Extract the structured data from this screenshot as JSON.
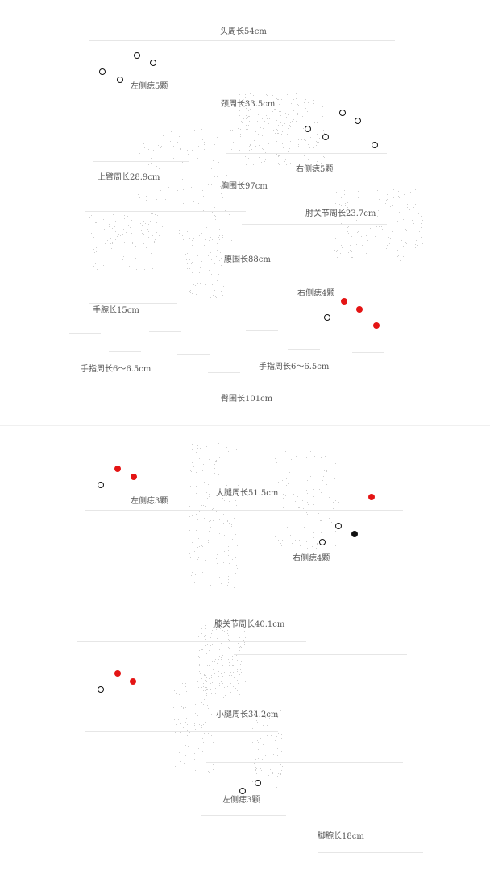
{
  "labels": {
    "head": "头周长54cm",
    "left_mole_1": "左侧痣5颗",
    "neck": "颈周长33.5cm",
    "right_mole_1": "右侧痣5颗",
    "upper_arm": "上臂周长28.9cm",
    "chest": "胸围长97cm",
    "elbow": "肘关节周长23.7cm",
    "waist": "腰围长88cm",
    "right_mole_2": "右侧痣4颗",
    "wrist": "手腕长15cm",
    "finger_left": "手指周长6～6.5cm",
    "finger_right": "手指周长6～6.5cm",
    "hip": "臀围长101cm",
    "thigh": "大腿周长51.5cm",
    "left_mole_2": "左侧痣3颗",
    "right_mole_3": "右侧痣4颗",
    "knee": "膝关节周长40.1cm",
    "calf": "小腿周长34.2cm",
    "left_mole_3": "左侧痣3颗",
    "ankle": "脚腕长18cm"
  },
  "colors": {
    "red": "#e41414",
    "black": "#111111",
    "line": "#e6e6e6",
    "text": "#555555"
  },
  "markers": {
    "legend": [
      "open-circle",
      "red-filled",
      "black-filled"
    ]
  }
}
